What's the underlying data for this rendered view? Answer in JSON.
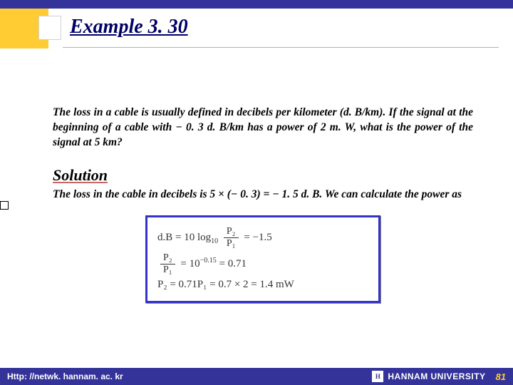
{
  "header": {
    "title": "Example 3. 30",
    "accent_color": "#ffcc33",
    "bar_color": "#333399"
  },
  "body": {
    "problem": "The loss in a cable is usually defined in decibels per kilometer (d. B/km). If the signal at the beginning of a cable with − 0. 3 d. B/km has a power of 2 m. W, what is the power of the signal at 5 km?",
    "solution_label": "Solution",
    "solution_text": "The loss in the cable in decibels is 5 × (− 0. 3) = − 1. 5 d. B. We can calculate the power as"
  },
  "equation": {
    "box_border_color": "#3333cc",
    "line1_prefix": "d.B = 10 log",
    "line1_sub": "10",
    "line1_frac_num": "P₂",
    "line1_frac_den": "P₁",
    "line1_rhs": "= −1.5",
    "line2_frac_num": "P₂",
    "line2_frac_den": "P₁",
    "line2_mid": "= 10",
    "line2_sup": "−0.15",
    "line2_rhs": "= 0.71",
    "line3": "P₂ = 0.71P₁ = 0.7 × 2 = 1.4 mW"
  },
  "footer": {
    "url": "Http: //netwk. hannam. ac. kr",
    "university": "HANNAM  UNIVERSITY",
    "page": "81",
    "bg_color": "#333399",
    "page_color": "#ffcc33"
  }
}
